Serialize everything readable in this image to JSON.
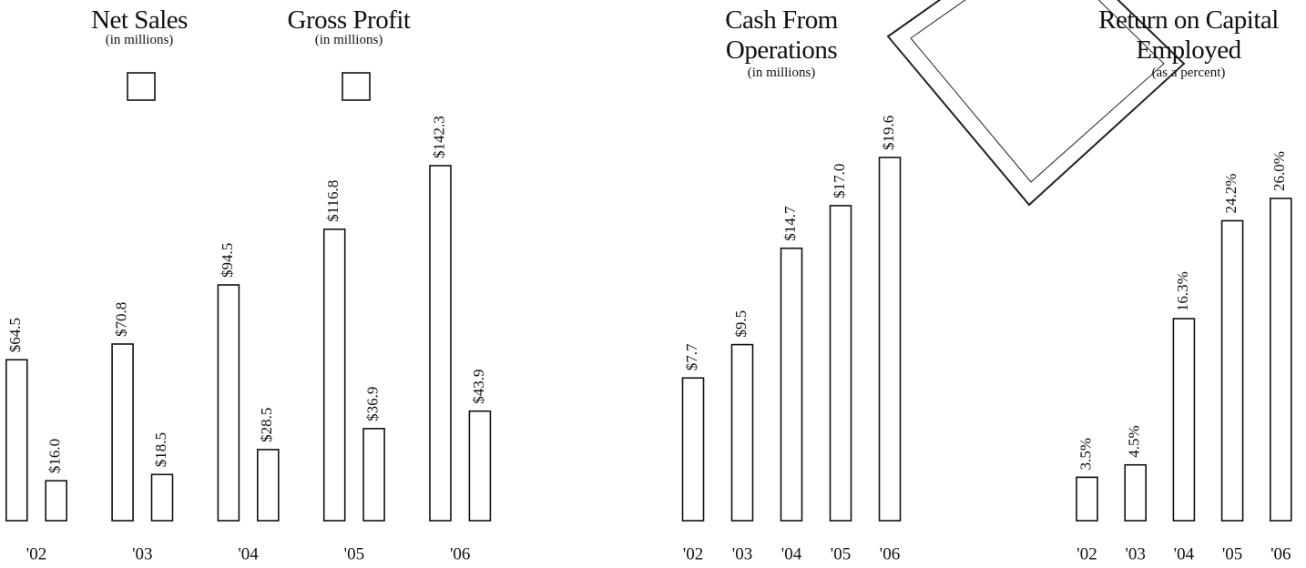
{
  "chart_data": [
    {
      "type": "bar",
      "subtitle": "(in millions)",
      "categories": [
        "'02",
        "'03",
        "'04",
        "'05",
        "'06"
      ],
      "series": [
        {
          "name": "Net Sales",
          "color": "#ffffff",
          "values": [
            64.5,
            70.8,
            94.5,
            116.8,
            142.3
          ],
          "value_labels": [
            "$64.5",
            "$70.8",
            "$94.5",
            "$116.8",
            "$142.3"
          ]
        },
        {
          "name": "Gross Profit",
          "color": "#ffffff",
          "values": [
            16.0,
            18.5,
            28.5,
            36.9,
            43.9
          ],
          "value_labels": [
            "$16.0",
            "$18.5",
            "$28.5",
            "$36.9",
            "$43.9"
          ]
        }
      ]
    },
    {
      "type": "bar",
      "title": "Cash From Operations",
      "subtitle": "(in millions)",
      "categories": [
        "'02",
        "'03",
        "'04",
        "'05",
        "'06"
      ],
      "color": "#ffffff",
      "values": [
        7.7,
        9.5,
        14.7,
        17.0,
        19.6
      ],
      "value_labels": [
        "$7.7",
        "$9.5",
        "$14.7",
        "$17.0",
        "$19.6"
      ]
    },
    {
      "type": "bar",
      "title": "Return on Capital Employed",
      "subtitle": "(as a percent)",
      "categories": [
        "'02",
        "'03",
        "'04",
        "'05",
        "'06"
      ],
      "color": "#ffffff",
      "values": [
        3.5,
        4.5,
        16.3,
        24.2,
        26.0
      ],
      "value_labels": [
        "3.5%",
        "4.5%",
        "16.3%",
        "24.2%",
        "26.0%"
      ]
    }
  ]
}
